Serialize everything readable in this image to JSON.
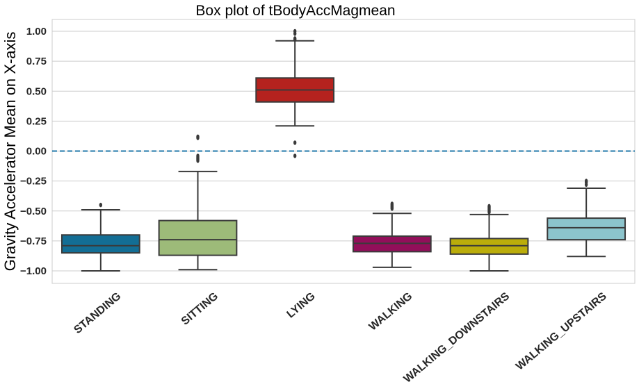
{
  "chart_data": {
    "type": "box",
    "title": "Box plot of tBodyAccMagmean",
    "xlabel": "",
    "ylabel": "Gravity Accelerator Mean on X-axis",
    "ylim": [
      -1.1,
      1.1
    ],
    "yticks": [
      1.0,
      0.75,
      0.5,
      0.25,
      0.0,
      -0.25,
      -0.5,
      -0.75,
      -1.0
    ],
    "ytick_labels": [
      "1.00",
      "0.75",
      "0.50",
      "0.25",
      "0.00",
      "−0.25",
      "−0.50",
      "−0.75",
      "−1.00"
    ],
    "grid": true,
    "reference_line": {
      "y": 0.0,
      "style": "dashed",
      "color": "#1f77a8"
    },
    "categories": [
      "STANDING",
      "SITTING",
      "LYING",
      "WALKING",
      "WALKING_DOWNSTAIRS",
      "WALKING_UPSTAIRS"
    ],
    "boxes": [
      {
        "category": "STANDING",
        "color": "#136e95",
        "whisker_low": -1.0,
        "q1": -0.85,
        "median": -0.79,
        "q3": -0.7,
        "whisker_high": -0.49,
        "fliers": [
          -0.45
        ]
      },
      {
        "category": "SITTING",
        "color": "#9dbb79",
        "whisker_low": -0.99,
        "q1": -0.87,
        "median": -0.74,
        "q3": -0.58,
        "whisker_high": -0.17,
        "fliers": [
          -0.08,
          -0.07,
          -0.06,
          -0.05,
          -0.04,
          0.11,
          0.12
        ]
      },
      {
        "category": "LYING",
        "color": "#b5221e",
        "whisker_low": 0.21,
        "q1": 0.41,
        "median": 0.51,
        "q3": 0.61,
        "whisker_high": 0.92,
        "fliers": [
          0.07,
          -0.04,
          0.93,
          0.94,
          0.98,
          1.0
        ]
      },
      {
        "category": "WALKING",
        "color": "#920f5a",
        "whisker_low": -0.97,
        "q1": -0.84,
        "median": -0.77,
        "q3": -0.71,
        "whisker_high": -0.52,
        "fliers": [
          -0.48,
          -0.47,
          -0.46,
          -0.45,
          -0.44
        ]
      },
      {
        "category": "WALKING_DOWNSTAIRS",
        "color": "#bbad0b",
        "whisker_low": -1.0,
        "q1": -0.86,
        "median": -0.79,
        "q3": -0.73,
        "whisker_high": -0.53,
        "fliers": [
          -0.51,
          -0.5,
          -0.49,
          -0.48,
          -0.47,
          -0.46
        ]
      },
      {
        "category": "WALKING_UPSTAIRS",
        "color": "#8cc4cc",
        "whisker_low": -0.88,
        "q1": -0.74,
        "median": -0.64,
        "q3": -0.56,
        "whisker_high": -0.31,
        "fliers": [
          -0.28,
          -0.26,
          -0.25
        ]
      }
    ]
  }
}
